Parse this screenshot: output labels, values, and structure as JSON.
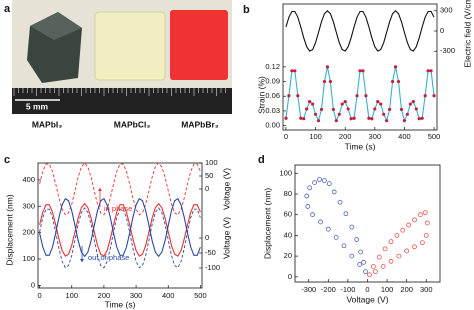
{
  "photo": {
    "panel": "a",
    "scale_bar": "5 mm",
    "labels": [
      "MAPbI₃",
      "MAPbCl₃",
      "MAPbBr₃"
    ]
  },
  "chart_data": [
    {
      "type": "line",
      "panel": "b",
      "xlabel": "Time (s)",
      "ylabel": "Strain (%)",
      "y2label": "Electric field (V/cm)",
      "x": [
        0,
        10,
        20,
        30,
        40,
        50,
        60,
        70,
        80,
        90,
        100,
        110,
        120,
        130,
        140,
        150,
        160,
        170,
        180,
        190,
        200,
        210,
        220,
        230,
        240,
        250,
        260,
        270,
        280,
        290,
        300,
        310,
        320,
        330,
        340,
        350,
        360,
        370,
        380,
        390,
        400,
        410,
        420,
        430,
        440,
        450,
        460,
        470,
        480,
        490,
        500
      ],
      "xlim": [
        -10,
        510
      ],
      "xticks": [
        0,
        100,
        200,
        300,
        400,
        500
      ],
      "ylim": [
        -0.005,
        0.13
      ],
      "yticks": [
        {
          "value": 0,
          "label": "0.00"
        },
        0.03,
        0.06,
        0.09,
        0.12
      ],
      "y2lim": [
        -400,
        400
      ],
      "y2ticks": [
        300,
        0,
        -300
      ],
      "series": [
        {
          "axis": "y2",
          "color": "#111111",
          "values": [
            61,
            205,
            289,
            289,
            205,
            61,
            -101,
            -233,
            -297,
            -275,
            -173,
            -20,
            138,
            256,
            300,
            256,
            138,
            -20,
            -173,
            -275,
            -297,
            -233,
            -101,
            61,
            205,
            289,
            289,
            205,
            61,
            -101,
            -233,
            -297,
            -275,
            -173,
            -20,
            138,
            256,
            300,
            256,
            138,
            -20,
            -173,
            -275,
            -297,
            -233,
            -101,
            61,
            205,
            289,
            289,
            205
          ]
        },
        {
          "axis": "y",
          "color": "#c41e3a",
          "line_color": "#3ab0d0",
          "markers": true,
          "values": [
            0.015,
            0.061,
            0.112,
            0.112,
            0.061,
            0.015,
            0.014,
            0.034,
            0.049,
            0.044,
            0.023,
            0.01,
            0.033,
            0.09,
            0.12,
            0.09,
            0.033,
            0.01,
            0.023,
            0.044,
            0.049,
            0.034,
            0.014,
            0.015,
            0.061,
            0.112,
            0.112,
            0.061,
            0.015,
            0.014,
            0.034,
            0.049,
            0.044,
            0.023,
            0.01,
            0.033,
            0.09,
            0.12,
            0.09,
            0.033,
            0.01,
            0.023,
            0.044,
            0.049,
            0.034,
            0.014,
            0.015,
            0.061,
            0.112,
            0.112,
            0.061
          ]
        }
      ]
    },
    {
      "type": "line",
      "panel": "c",
      "xlabel": "Time (s)",
      "ylabel": "Displacement (nm)",
      "y2label": "Voltage (V)",
      "y3label": "Voltage (V)",
      "x": [
        0,
        10,
        20,
        30,
        40,
        50,
        60,
        70,
        80,
        90,
        100,
        110,
        120,
        130,
        140,
        150,
        160,
        170,
        180,
        190,
        200,
        210,
        220,
        230,
        240,
        250,
        260,
        270,
        280,
        290,
        300,
        310,
        320,
        330,
        340,
        350,
        360,
        370,
        380,
        390,
        400,
        410,
        420,
        430,
        440,
        450,
        460,
        470,
        480,
        490,
        500
      ],
      "xlim": [
        -5,
        505
      ],
      "xticks": [
        0,
        100,
        200,
        300,
        400,
        500
      ],
      "ylim": [
        -10,
        430
      ],
      "yticks": [
        0,
        100,
        200,
        300,
        400
      ],
      "y2lim": [
        -100,
        100
      ],
      "y2ticks": [
        100,
        50,
        0
      ],
      "y3lim": [
        -100,
        100
      ],
      "y3ticks": [
        0,
        -50,
        -100
      ],
      "annotations": [
        {
          "text": "in phase",
          "color": "#e8322f"
        },
        {
          "text": "out of phase",
          "color": "#2a49a5"
        }
      ],
      "series": [
        {
          "axis": "y2",
          "color": "#e8322f",
          "dashed": true,
          "values": [
            20,
            68,
            96,
            96,
            68,
            20,
            -34,
            -78,
            -99,
            -92,
            -58,
            -7,
            46,
            85,
            100,
            85,
            46,
            -7,
            -58,
            -92,
            -99,
            -78,
            -34,
            20,
            68,
            96,
            96,
            68,
            20,
            -34,
            -78,
            -99,
            -92,
            -58,
            -7,
            46,
            85,
            100,
            85,
            46,
            -7,
            -58,
            -92,
            -99,
            -78,
            -34,
            20,
            68,
            96,
            96,
            68
          ]
        },
        {
          "axis": "y3",
          "color": "#2a49a5",
          "dashed": true,
          "values": [
            20,
            68,
            96,
            96,
            68,
            20,
            -34,
            -78,
            -99,
            -92,
            -58,
            -7,
            46,
            85,
            100,
            85,
            46,
            -7,
            -58,
            -92,
            -99,
            -78,
            -34,
            20,
            68,
            96,
            96,
            68,
            20,
            -34,
            -78,
            -99,
            -92,
            -58,
            -7,
            46,
            85,
            100,
            85,
            46,
            -7,
            -58,
            -92,
            -99,
            -78,
            -34,
            20,
            68,
            96,
            96,
            68
          ]
        },
        {
          "axis": "y",
          "color": "#e8322f",
          "values": [
            230,
            278,
            306,
            306,
            278,
            230,
            177,
            132,
            111,
            118,
            152,
            203,
            256,
            295,
            310,
            295,
            256,
            203,
            152,
            118,
            111,
            132,
            177,
            230,
            278,
            306,
            306,
            278,
            230,
            177,
            132,
            111,
            118,
            152,
            203,
            256,
            295,
            310,
            295,
            256,
            203,
            152,
            118,
            111,
            132,
            177,
            230,
            278,
            306,
            306,
            278
          ]
        },
        {
          "axis": "y",
          "color": "#2a49a5",
          "values": [
            198,
            145,
            114,
            114,
            145,
            198,
            257,
            305,
            329,
            321,
            283,
            227,
            169,
            126,
            110,
            126,
            169,
            227,
            283,
            321,
            329,
            305,
            257,
            198,
            145,
            114,
            114,
            145,
            198,
            257,
            305,
            329,
            321,
            283,
            227,
            169,
            126,
            110,
            126,
            169,
            227,
            283,
            321,
            329,
            305,
            257,
            198,
            145,
            114,
            114,
            145
          ]
        }
      ]
    },
    {
      "type": "scatter",
      "panel": "d",
      "xlabel": "Voltage (V)",
      "ylabel": "Displacement (nm)",
      "xlim": [
        -370,
        370
      ],
      "xticks": [
        -300,
        -200,
        -100,
        0,
        100,
        200,
        300
      ],
      "ylim": [
        -5,
        108
      ],
      "yticks": [
        0,
        20,
        40,
        60,
        80,
        100
      ],
      "series": [
        {
          "color": "#2a49a5",
          "x": [
            -10,
            -40,
            -80,
            -120,
            -160,
            -200,
            -240,
            -280,
            -305,
            -310,
            -295,
            -270,
            -245,
            -220,
            -195,
            -170,
            -140,
            -110,
            -80,
            -55,
            -35,
            -20
          ],
          "values": [
            5,
            12,
            20,
            30,
            38,
            46,
            53,
            60,
            68,
            78,
            86,
            91,
            94,
            93,
            90,
            82,
            72,
            61,
            48,
            36,
            24,
            14
          ]
        },
        {
          "color": "#e8322f",
          "x": [
            10,
            40,
            80,
            120,
            160,
            200,
            240,
            280,
            300,
            305,
            295,
            270,
            240,
            210,
            180,
            150,
            120,
            90,
            60,
            30
          ],
          "values": [
            2,
            5,
            10,
            15,
            20,
            25,
            29,
            33,
            40,
            52,
            62,
            60,
            55,
            50,
            45,
            40,
            34,
            27,
            19,
            10
          ]
        }
      ]
    }
  ]
}
